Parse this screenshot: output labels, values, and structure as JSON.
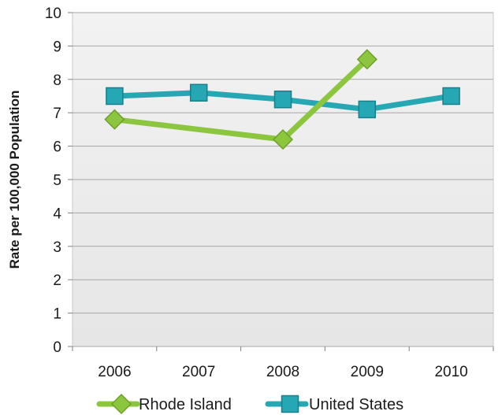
{
  "chart_data": {
    "type": "line",
    "title": "",
    "xlabel": "",
    "ylabel": "Rate per 100,000 Population",
    "categories": [
      "2006",
      "2007",
      "2008",
      "2009",
      "2010"
    ],
    "ylim": [
      0,
      10
    ],
    "yticks": [
      0,
      1,
      2,
      3,
      4,
      5,
      6,
      7,
      8,
      9,
      10
    ],
    "grid": true,
    "legend_position": "bottom",
    "series": [
      {
        "name": "Rhode Island",
        "values": [
          6.8,
          null,
          6.2,
          8.6,
          null
        ],
        "color": "#8cc63f",
        "marker": "diamond"
      },
      {
        "name": "United States",
        "values": [
          7.5,
          7.6,
          7.4,
          7.1,
          7.5
        ],
        "color": "#26a7b4",
        "marker": "square"
      }
    ]
  }
}
